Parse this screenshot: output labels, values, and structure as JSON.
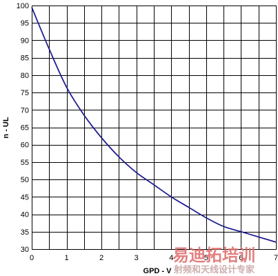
{
  "chart_data": {
    "type": "line",
    "title": "",
    "xlabel": "GPD - V",
    "ylabel": "n - UL",
    "xlim": [
      0,
      7
    ],
    "ylim": [
      30,
      100
    ],
    "x_ticks": [
      "0",
      "1",
      "2",
      "3",
      "4",
      "5",
      "6",
      "7"
    ],
    "y_ticks": [
      "30",
      "35",
      "40",
      "45",
      "50",
      "55",
      "60",
      "65",
      "70",
      "75",
      "80",
      "85",
      "90",
      "95",
      "100"
    ],
    "grid": true,
    "series": [
      {
        "color": "#1f1f8f",
        "x": [
          0,
          0.5,
          1,
          1.5,
          2,
          2.5,
          3,
          3.5,
          4,
          4.5,
          5,
          5.5,
          6,
          6.5,
          7
        ],
        "y": [
          99.5,
          87.5,
          76.5,
          68.5,
          62,
          56.5,
          52,
          48.5,
          45,
          42,
          39,
          36.5,
          35,
          33.5,
          32
        ]
      }
    ]
  },
  "watermark": {
    "main": "易迪拓培训",
    "sub": "射频和天线设计专家"
  }
}
